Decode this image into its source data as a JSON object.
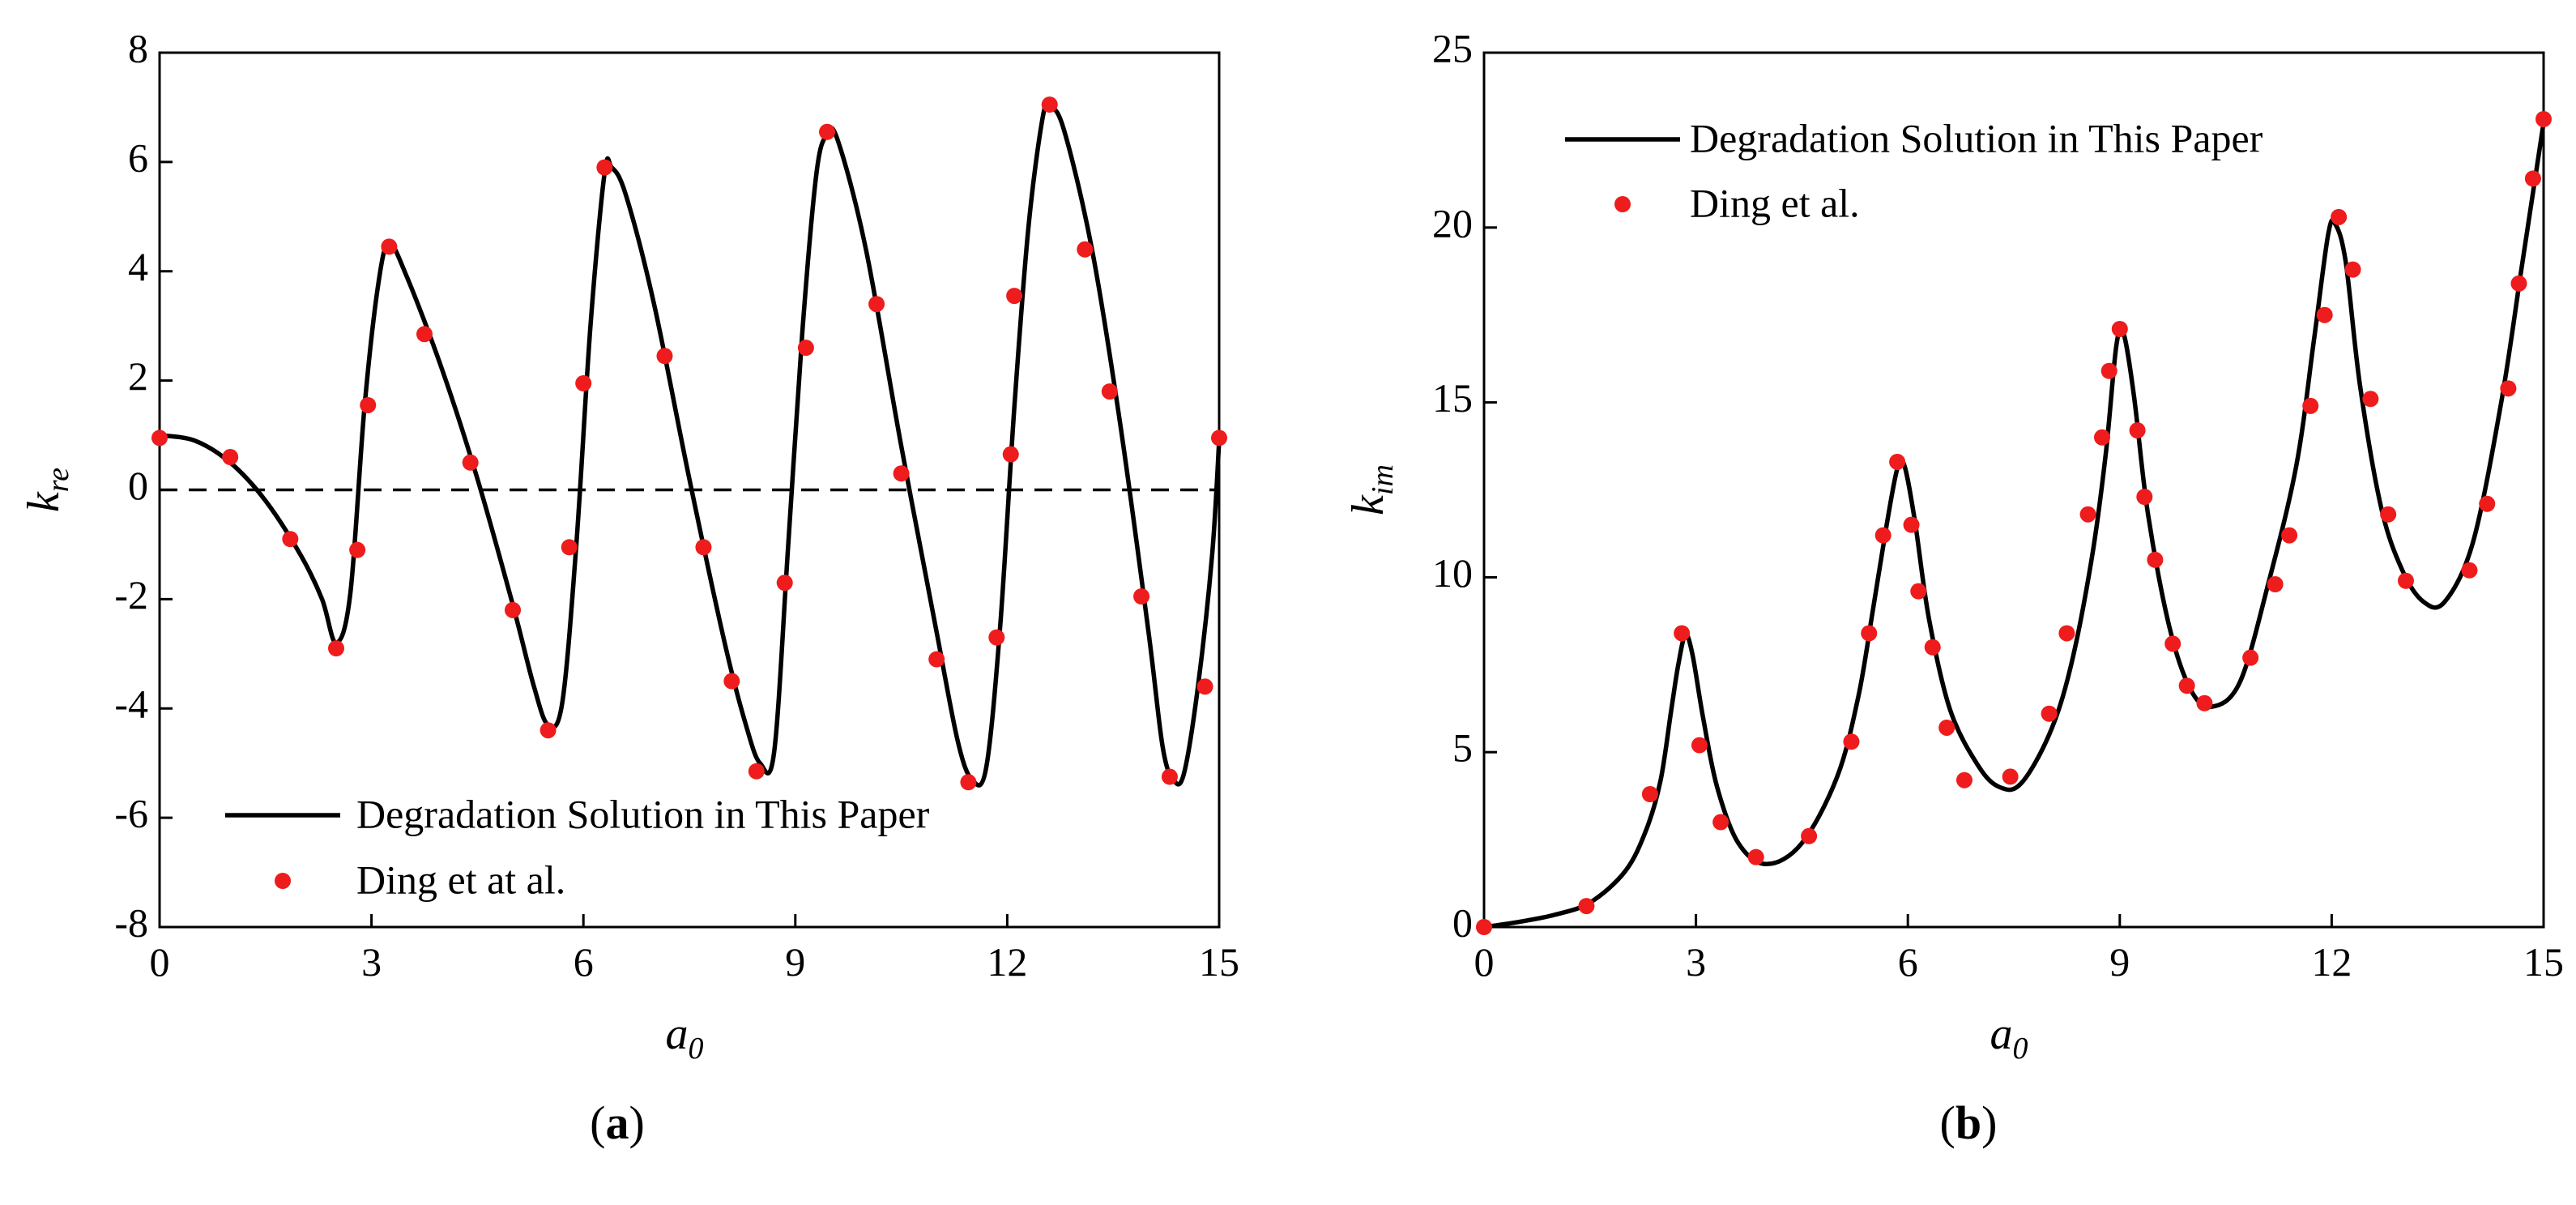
{
  "chart_data": [
    {
      "type": "line",
      "panel_label": "a",
      "xlabel": {
        "main": "a",
        "sub": "0"
      },
      "ylabel": {
        "main": "k",
        "sub": "re"
      },
      "xlim": [
        0,
        15
      ],
      "ylim": [
        -8,
        8
      ],
      "xticks": [
        0,
        3,
        6,
        9,
        12,
        15
      ],
      "yticks": [
        -8,
        -6,
        -4,
        -2,
        0,
        2,
        4,
        6,
        8
      ],
      "reference_line": {
        "y": 0,
        "style": "dashed"
      },
      "legend_position": "bottom-center",
      "series": [
        {
          "name": "Degradation Solution in This Paper",
          "kind": "line",
          "color": "#000000",
          "x": [
            0,
            0.5,
            1.0,
            1.5,
            2.0,
            2.3,
            2.5,
            2.7,
            2.9,
            3.1,
            3.25,
            3.5,
            4.0,
            4.5,
            5.0,
            5.3,
            5.5,
            5.7,
            5.9,
            6.1,
            6.3,
            6.4,
            6.6,
            7.0,
            7.5,
            8.0,
            8.3,
            8.5,
            8.7,
            8.9,
            9.1,
            9.3,
            9.45,
            9.6,
            10.0,
            10.5,
            11.0,
            11.3,
            11.5,
            11.7,
            11.9,
            12.1,
            12.3,
            12.5,
            12.6,
            12.8,
            13.2,
            13.6,
            14.0,
            14.2,
            14.35,
            14.5,
            14.7,
            14.9,
            15.0
          ],
          "y": [
            1.0,
            0.9,
            0.5,
            -0.2,
            -1.2,
            -2.0,
            -2.8,
            -1.9,
            1.5,
            3.8,
            4.5,
            3.9,
            2.2,
            0.2,
            -2.1,
            -3.6,
            -4.3,
            -3.9,
            -1.0,
            3.0,
            5.8,
            5.9,
            5.4,
            3.4,
            0.2,
            -2.8,
            -4.3,
            -5.0,
            -4.8,
            -1.0,
            2.9,
            5.8,
            6.5,
            6.4,
            4.4,
            0.8,
            -2.6,
            -4.6,
            -5.3,
            -5.1,
            -2.5,
            1.5,
            4.8,
            6.8,
            7.0,
            6.6,
            4.4,
            1.2,
            -2.6,
            -4.7,
            -5.3,
            -5.2,
            -3.6,
            -1.2,
            0.9
          ]
        },
        {
          "name": "Ding et at al.",
          "kind": "scatter",
          "color": "#ee1c1c",
          "x": [
            0,
            1.0,
            1.85,
            2.5,
            2.8,
            2.95,
            3.25,
            3.75,
            4.4,
            5.0,
            5.5,
            5.8,
            6.0,
            6.3,
            7.15,
            7.7,
            8.1,
            8.45,
            8.85,
            9.15,
            9.45,
            10.15,
            10.5,
            11.0,
            11.45,
            11.85,
            12.05,
            12.1,
            12.6,
            13.1,
            13.45,
            13.9,
            14.3,
            14.8,
            15.0
          ],
          "y": [
            0.95,
            0.6,
            -0.9,
            -2.9,
            -1.1,
            1.55,
            4.45,
            2.85,
            0.5,
            -2.2,
            -4.4,
            -1.05,
            1.95,
            5.9,
            2.45,
            -1.05,
            -3.5,
            -5.15,
            -1.7,
            2.6,
            6.55,
            3.4,
            0.3,
            -3.1,
            -5.35,
            -2.7,
            0.65,
            3.55,
            7.05,
            4.4,
            1.8,
            -1.95,
            -5.25,
            -3.6,
            0.95
          ]
        }
      ]
    },
    {
      "type": "line",
      "panel_label": "b",
      "xlabel": {
        "main": "a",
        "sub": "0"
      },
      "ylabel": {
        "main": "k",
        "sub": "im"
      },
      "xlim": [
        0,
        15
      ],
      "ylim": [
        0,
        25
      ],
      "xticks": [
        0,
        3,
        6,
        9,
        12,
        15
      ],
      "yticks": [
        0,
        5,
        10,
        15,
        20,
        25
      ],
      "legend_position": "top-left",
      "series": [
        {
          "name": "Degradation Solution in This Paper",
          "kind": "line",
          "color": "#000000",
          "x": [
            0,
            0.5,
            1.0,
            1.5,
            2.0,
            2.3,
            2.5,
            2.65,
            2.75,
            2.85,
            2.95,
            3.1,
            3.3,
            3.6,
            4.0,
            4.5,
            5.0,
            5.3,
            5.5,
            5.7,
            5.85,
            5.95,
            6.1,
            6.3,
            6.6,
            7.0,
            7.3,
            7.6,
            8.0,
            8.3,
            8.6,
            8.8,
            8.95,
            9.05,
            9.2,
            9.4,
            9.7,
            10.0,
            10.3,
            10.7,
            11.1,
            11.5,
            11.75,
            11.95,
            12.05,
            12.2,
            12.4,
            12.7,
            13.0,
            13.3,
            13.6,
            14.0,
            14.4,
            14.7,
            15.0
          ],
          "y": [
            0,
            0.15,
            0.35,
            0.7,
            1.6,
            2.8,
            4.2,
            6.2,
            7.5,
            8.35,
            7.8,
            6.0,
            4.0,
            2.4,
            1.8,
            2.4,
            4.3,
            6.6,
            9.0,
            11.5,
            13.1,
            13.2,
            11.6,
            8.8,
            6.2,
            4.6,
            4.0,
            4.1,
            5.5,
            7.4,
            10.5,
            13.5,
            16.6,
            17.0,
            15.2,
            11.8,
            8.6,
            6.8,
            6.3,
            7.0,
            9.8,
            13.2,
            16.8,
            19.8,
            20.1,
            19.0,
            15.5,
            12.0,
            10.2,
            9.3,
            9.3,
            11.0,
            15.0,
            19.0,
            23.0
          ]
        },
        {
          "name": "Ding et al.",
          "kind": "scatter",
          "color": "#ee1c1c",
          "x": [
            0,
            1.45,
            2.35,
            2.8,
            3.05,
            3.35,
            3.85,
            4.6,
            5.2,
            5.45,
            5.65,
            5.85,
            6.05,
            6.15,
            6.35,
            6.55,
            6.8,
            7.45,
            8.0,
            8.25,
            8.55,
            8.75,
            8.85,
            9.0,
            9.25,
            9.35,
            9.5,
            9.75,
            9.95,
            10.2,
            10.85,
            11.2,
            11.4,
            11.7,
            11.9,
            12.1,
            12.3,
            12.55,
            12.8,
            13.05,
            13.95,
            14.2,
            14.5,
            14.65,
            14.85,
            15.0
          ],
          "y": [
            0,
            0.6,
            3.8,
            8.4,
            5.2,
            3.0,
            2.0,
            2.6,
            5.3,
            8.4,
            11.2,
            13.3,
            11.5,
            9.6,
            8.0,
            5.7,
            4.2,
            4.3,
            6.1,
            8.4,
            11.8,
            14.0,
            15.9,
            17.1,
            14.2,
            12.3,
            10.5,
            8.1,
            6.9,
            6.4,
            7.7,
            9.8,
            11.2,
            14.9,
            17.5,
            20.3,
            18.8,
            15.1,
            11.8,
            9.9,
            10.2,
            12.1,
            15.4,
            18.4,
            21.4,
            23.1
          ]
        }
      ]
    }
  ]
}
